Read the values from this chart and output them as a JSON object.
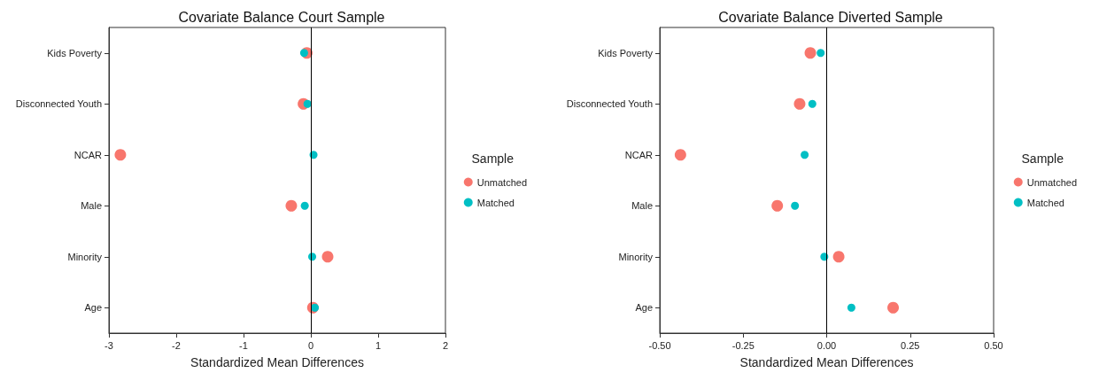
{
  "chart_data": [
    {
      "type": "scatter",
      "title": "Covariate Balance Court Sample",
      "xlabel": "Standardized Mean Differences",
      "legend_title": "Sample",
      "orientation": "horizontal",
      "categories": [
        "Kids Poverty",
        "Disconnected Youth",
        "NCAR",
        "Male",
        "Minority",
        "Age"
      ],
      "series": [
        {
          "name": "Unmatched",
          "color": "#f8766d",
          "values": [
            -0.06,
            -0.11,
            -2.83,
            -0.29,
            0.25,
            0.03
          ]
        },
        {
          "name": "Matched",
          "color": "#00bfc4",
          "values": [
            -0.1,
            -0.05,
            0.04,
            -0.09,
            0.02,
            0.06
          ]
        }
      ],
      "xlim": [
        -3,
        2
      ],
      "xticks": [
        -3,
        -2,
        -1,
        0,
        1,
        2
      ],
      "ref_lines": [
        {
          "axis": "x",
          "value": 0,
          "color": "#000000"
        }
      ],
      "grid": false,
      "legend": "right",
      "marker": "circle"
    },
    {
      "type": "scatter",
      "title": "Covariate Balance Diverted Sample",
      "xlabel": "Standardized Mean Differences",
      "legend_title": "Sample",
      "orientation": "horizontal",
      "categories": [
        "Kids Poverty",
        "Disconnected Youth",
        "NCAR",
        "Male",
        "Minority",
        "Age"
      ],
      "series": [
        {
          "name": "Unmatched",
          "color": "#f8766d",
          "values": [
            -0.049,
            -0.081,
            -0.438,
            -0.148,
            0.036,
            0.199
          ]
        },
        {
          "name": "Matched",
          "color": "#00bfc4",
          "values": [
            -0.018,
            -0.043,
            -0.066,
            -0.095,
            -0.007,
            0.074
          ]
        }
      ],
      "xlim": [
        -0.5,
        0.5
      ],
      "xticks": [
        {
          "value": -0.5,
          "label": "-0.50"
        },
        {
          "value": -0.25,
          "label": "-0.25"
        },
        {
          "value": 0,
          "label": "0.00"
        },
        {
          "value": 0.25,
          "label": "0.25"
        },
        {
          "value": 0.5,
          "label": "0.50"
        }
      ],
      "ref_lines": [
        {
          "axis": "x",
          "value": 0,
          "color": "#000000"
        }
      ],
      "grid": false,
      "legend": "right",
      "marker": "circle"
    }
  ]
}
